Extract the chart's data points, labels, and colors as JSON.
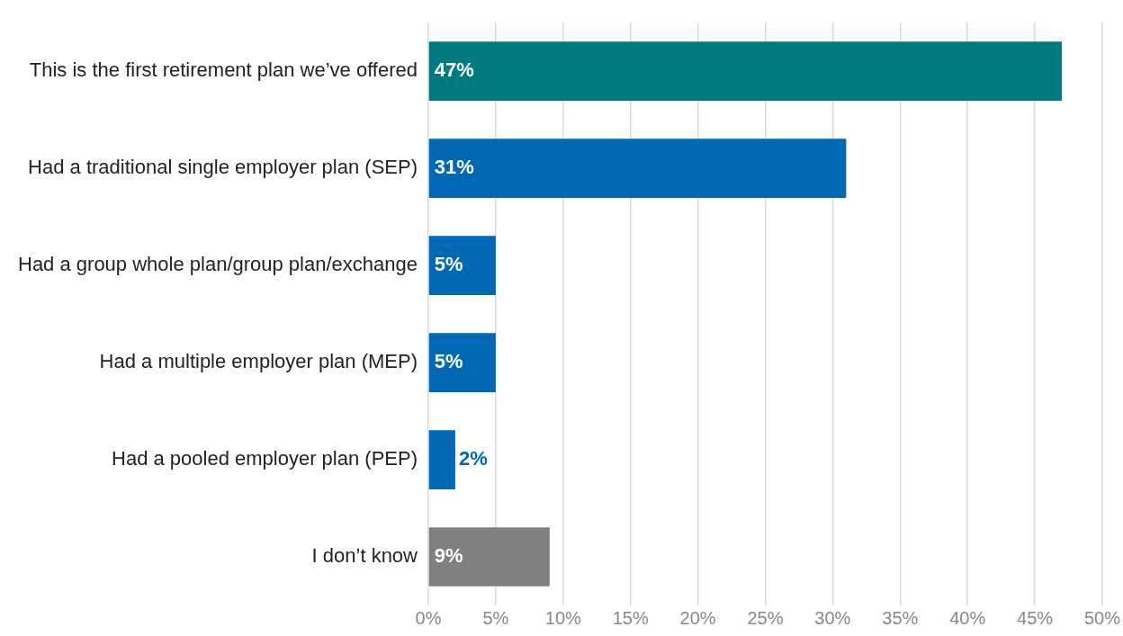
{
  "chart_data": {
    "type": "bar",
    "orientation": "horizontal",
    "categories": [
      "This is the first retirement plan we’ve offered",
      "Had a traditional single employer plan (SEP)",
      "Had a group whole plan/group plan/exchange",
      "Had a multiple employer plan (MEP)",
      "Had a pooled employer plan (PEP)",
      "I don’t know"
    ],
    "values": [
      47,
      31,
      5,
      5,
      2,
      9
    ],
    "colors": [
      "#007c80",
      "#0068b5",
      "#0068b5",
      "#0068b5",
      "#0068b5",
      "#808080"
    ],
    "value_labels": [
      "47%",
      "31%",
      "5%",
      "5%",
      "2%",
      "9%"
    ],
    "xlim": [
      0,
      50
    ],
    "xticks": [
      {
        "value": 0,
        "label": "0%"
      },
      {
        "value": 5,
        "label": "5%"
      },
      {
        "value": 10,
        "label": "10%"
      },
      {
        "value": 15,
        "label": "15%"
      },
      {
        "value": 20,
        "label": "20%"
      },
      {
        "value": 25,
        "label": "25%"
      },
      {
        "value": 30,
        "label": "30%"
      },
      {
        "value": 35,
        "label": "35%"
      },
      {
        "value": 40,
        "label": "40%"
      },
      {
        "value": 45,
        "label": "45%"
      },
      {
        "value": 50,
        "label": "50%"
      }
    ],
    "grid": "x",
    "legend": false
  }
}
